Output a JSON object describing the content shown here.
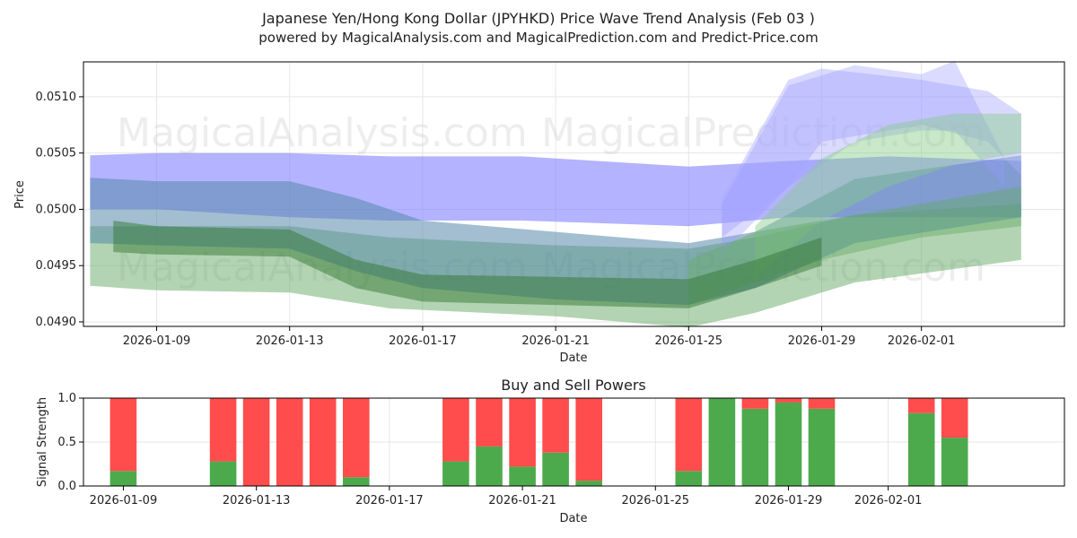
{
  "figure": {
    "title_line1": "Japanese Yen/Hong Kong Dollar (JPYHKD) Price Wave Trend Analysis (Feb 03 )",
    "title_line2": "powered by MagicalAnalysis.com and MagicalPrediction.com and Predict-Price.com",
    "watermarks": [
      "MagicalAnalysis.com",
      "MagicalPrediction.com"
    ]
  },
  "chart_data": [
    {
      "type": "area",
      "title": "",
      "xlabel": "Date",
      "ylabel": "Price",
      "xlim_days": [
        -1.2,
        28.3
      ],
      "ylim": [
        0.04896,
        0.05131
      ],
      "x_ticks": [
        {
          "day": 1,
          "label": "2026-01-09"
        },
        {
          "day": 5,
          "label": "2026-01-13"
        },
        {
          "day": 9,
          "label": "2026-01-17"
        },
        {
          "day": 13,
          "label": "2026-01-21"
        },
        {
          "day": 17,
          "label": "2026-01-25"
        },
        {
          "day": 21,
          "label": "2026-01-29"
        },
        {
          "day": 24,
          "label": "2026-02-01"
        }
      ],
      "y_ticks": [
        {
          "value": 0.049,
          "label": "0.0490"
        },
        {
          "value": 0.0495,
          "label": "0.0495"
        },
        {
          "value": 0.05,
          "label": "0.0500"
        },
        {
          "value": 0.0505,
          "label": "0.0505"
        },
        {
          "value": 0.051,
          "label": "0.0510"
        }
      ],
      "grid": true,
      "bands": [
        {
          "color": "#8080ff",
          "opacity": 0.6,
          "x": [
            -1,
            1,
            5,
            8,
            12,
            17,
            20,
            23,
            27
          ],
          "upper": [
            0.05048,
            0.0505,
            0.0505,
            0.05047,
            0.05047,
            0.05038,
            0.05043,
            0.05047,
            0.05043
          ],
          "lower": [
            0.05,
            0.05,
            0.04993,
            0.0499,
            0.0499,
            0.04985,
            0.04993,
            0.04993,
            0.04993
          ]
        },
        {
          "color": "#66aa66",
          "opacity": 0.5,
          "x": [
            -1,
            1,
            5,
            8,
            13,
            17,
            19,
            22,
            27
          ],
          "upper": [
            0.04985,
            0.04985,
            0.04985,
            0.04975,
            0.04968,
            0.04965,
            0.04975,
            0.04995,
            0.05005
          ],
          "lower": [
            0.04932,
            0.04928,
            0.04926,
            0.04912,
            0.04905,
            0.04895,
            0.04908,
            0.04935,
            0.04955
          ]
        },
        {
          "color": "#5588aa",
          "opacity": 0.55,
          "x": [
            -1,
            1,
            5,
            7,
            9,
            13,
            17,
            19,
            22,
            27
          ],
          "upper": [
            0.05028,
            0.05025,
            0.05025,
            0.0501,
            0.0499,
            0.0498,
            0.0497,
            0.0498,
            0.05027,
            0.05048
          ],
          "lower": [
            0.0497,
            0.04968,
            0.04965,
            0.04945,
            0.0493,
            0.0492,
            0.04915,
            0.0493,
            0.0497,
            0.04993
          ]
        },
        {
          "color": "#aaaaff",
          "opacity": 0.45,
          "x": [
            18,
            20,
            21,
            24,
            26,
            27
          ],
          "upper": [
            0.0501,
            0.05115,
            0.05125,
            0.05115,
            0.05105,
            0.05085
          ],
          "lower": [
            0.04975,
            0.0502,
            0.0506,
            0.05075,
            0.0506,
            0.0503
          ]
        },
        {
          "color": "#9999ff",
          "opacity": 0.35,
          "x": [
            18,
            20,
            22,
            24,
            25,
            26.5
          ],
          "upper": [
            0.05005,
            0.0511,
            0.05128,
            0.0512,
            0.05132,
            0.05045
          ],
          "lower": [
            0.0496,
            0.0502,
            0.0506,
            0.0507,
            0.0507,
            0.0502
          ]
        },
        {
          "color": "#88cc88",
          "opacity": 0.45,
          "x": [
            19,
            21,
            23,
            25,
            27
          ],
          "upper": [
            0.04985,
            0.05045,
            0.05075,
            0.05085,
            0.05085
          ],
          "lower": [
            0.0494,
            0.0499,
            0.0502,
            0.0504,
            0.0505
          ]
        },
        {
          "color": "#66aa66",
          "opacity": 0.45,
          "x": [
            17,
            19,
            21,
            24,
            27
          ],
          "upper": [
            0.04955,
            0.0498,
            0.0499,
            0.05005,
            0.0502
          ],
          "lower": [
            0.04915,
            0.04935,
            0.04955,
            0.04975,
            0.04985
          ]
        },
        {
          "color": "#337733",
          "opacity": 0.5,
          "x": [
            -0.3,
            1,
            5,
            7,
            9,
            13,
            17,
            19,
            21
          ],
          "upper": [
            0.0499,
            0.04985,
            0.04982,
            0.04955,
            0.04942,
            0.0494,
            0.04938,
            0.04955,
            0.04975
          ],
          "lower": [
            0.04962,
            0.0496,
            0.04958,
            0.0493,
            0.04918,
            0.04915,
            0.04912,
            0.0493,
            0.0495
          ]
        }
      ]
    },
    {
      "type": "bar",
      "stacked": true,
      "title": "Buy and Sell Powers",
      "xlabel": "Date",
      "ylabel": "Signal Strength",
      "xlim_days": [
        -1.2,
        28.3
      ],
      "ylim": [
        0,
        1
      ],
      "x_ticks": [
        {
          "day": 0,
          "label": "2026-01-09"
        },
        {
          "day": 4,
          "label": "2026-01-13"
        },
        {
          "day": 8,
          "label": "2026-01-17"
        },
        {
          "day": 12,
          "label": "2026-01-21"
        },
        {
          "day": 16,
          "label": "2026-01-25"
        },
        {
          "day": 20,
          "label": "2026-01-29"
        },
        {
          "day": 23,
          "label": "2026-02-01"
        }
      ],
      "y_ticks": [
        {
          "value": 0,
          "label": "0.0"
        },
        {
          "value": 0.5,
          "label": "0.5"
        },
        {
          "value": 1,
          "label": "1.0"
        }
      ],
      "grid": true,
      "buy_color": "#4caa4c",
      "sell_color": "#ff4c4c",
      "bars": [
        {
          "day": 0,
          "buy": 0.17
        },
        {
          "day": 3,
          "buy": 0.28
        },
        {
          "day": 4,
          "buy": 0.0
        },
        {
          "day": 5,
          "buy": 0.0
        },
        {
          "day": 6,
          "buy": 0.0
        },
        {
          "day": 7,
          "buy": 0.1
        },
        {
          "day": 10,
          "buy": 0.28
        },
        {
          "day": 11,
          "buy": 0.45
        },
        {
          "day": 12,
          "buy": 0.22
        },
        {
          "day": 13,
          "buy": 0.38
        },
        {
          "day": 14,
          "buy": 0.06
        },
        {
          "day": 17,
          "buy": 0.17
        },
        {
          "day": 18,
          "buy": 1.0
        },
        {
          "day": 19,
          "buy": 0.88
        },
        {
          "day": 20,
          "buy": 0.95
        },
        {
          "day": 21,
          "buy": 0.88
        },
        {
          "day": 24,
          "buy": 0.83
        },
        {
          "day": 25,
          "buy": 0.55
        }
      ]
    }
  ]
}
